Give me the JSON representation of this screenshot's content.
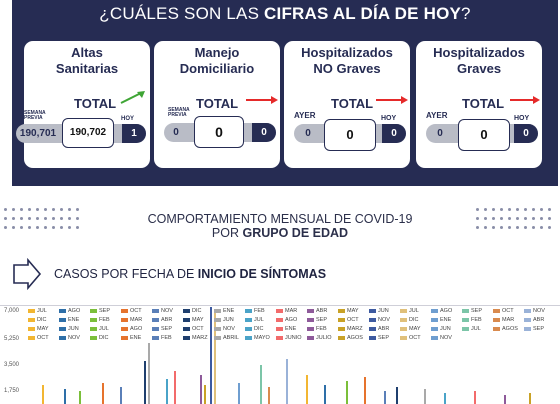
{
  "header": {
    "title_prefix": "¿CUÁLES SON LAS ",
    "title_bold": "CIFRAS AL DÍA DE HOY",
    "title_suffix": "?"
  },
  "cards": [
    {
      "title_l1": "Altas",
      "title_l2": "Sanitarias",
      "total_label": "TOTAL",
      "prev_label_l1": "SEMANA",
      "prev_label_l2": "PREVIA",
      "prev_value": "190,701",
      "total_value": "190,702",
      "today_label": "HOY",
      "today_value": "1",
      "arrow": "up-green"
    },
    {
      "title_l1": "Manejo",
      "title_l2": "Domiciliario",
      "total_label": "TOTAL",
      "prev_label_l1": "SEMANA",
      "prev_label_l2": "PREVIA",
      "prev_value": "0",
      "total_value": "0",
      "today_label": "",
      "today_value": "0",
      "arrow": "right-red"
    },
    {
      "title_l1": "Hospitalizados",
      "title_l2": "NO Graves",
      "total_label": "TOTAL",
      "prev_label_l1": "AYER",
      "prev_label_l2": "",
      "prev_value": "0",
      "total_value": "0",
      "today_label": "HOY",
      "today_value": "0",
      "arrow": "right-red"
    },
    {
      "title_l1": "Hospitalizados",
      "title_l2": "Graves",
      "total_label": "TOTAL",
      "prev_label_l1": "AYER",
      "prev_label_l2": "",
      "prev_value": "0",
      "total_value": "0",
      "today_label": "HOY",
      "today_value": "0",
      "arrow": "right-red"
    }
  ],
  "section": {
    "title_l1": "COMPORTAMIENTO MENSUAL DE COVID-19",
    "title_l2_prefix": "POR ",
    "title_l2_bold": "GRUPO DE EDAD",
    "casos_prefix": "CASOS POR FECHA DE ",
    "casos_bold": "INICIO DE SÍNTOMAS"
  },
  "chart_data": {
    "type": "bar",
    "y_ticks": [
      "7,000",
      "5,250",
      "3,500",
      "1,750"
    ],
    "legend_rows": [
      [
        "JUL",
        "AGO",
        "SEP",
        "OCT",
        "NOV",
        "DIC",
        "ENE",
        "FEB",
        "MAR",
        "ABR",
        "MAY",
        "JUN",
        "JUL",
        "AGO",
        "SEP",
        "OCT",
        "NOV"
      ],
      [
        "DIC",
        "ENE",
        "FEB",
        "MAR",
        "ABR",
        "MAY",
        "JUN",
        "JUL",
        "AGO",
        "SEP",
        "OCT",
        "NOV",
        "DIC",
        "ENE",
        "FEB",
        "MAR",
        "ABR"
      ],
      [
        "MAY",
        "JUN",
        "JUL",
        "AGO",
        "SEP",
        "OCT",
        "NOV",
        "DIC",
        "ENE",
        "FEB",
        "MARZ",
        "ABR",
        "MAY",
        "JUN",
        "JUL",
        "AGOS",
        "SEP"
      ],
      [
        "OCT",
        "NOV",
        "DIC",
        "ENE",
        "FEB",
        "MARZ",
        "ABRIL",
        "MAYO",
        "JUNIO",
        "JULIO",
        "AGOS",
        "SEP",
        "OCT",
        "NOV"
      ]
    ],
    "legend_colors": [
      "#f2b632",
      "#2e6fa8",
      "#7bbf3a",
      "#e6732d",
      "#5a7fb8",
      "#1f3f6e",
      "#a9a9a9",
      "#4aa3c8",
      "#f26b6b",
      "#8e5a9a",
      "#c9a227",
      "#3d5aa0",
      "#e0c07a",
      "#6f9ed0",
      "#7cc5a8",
      "#d98a4e",
      "#9ab2d8"
    ]
  }
}
